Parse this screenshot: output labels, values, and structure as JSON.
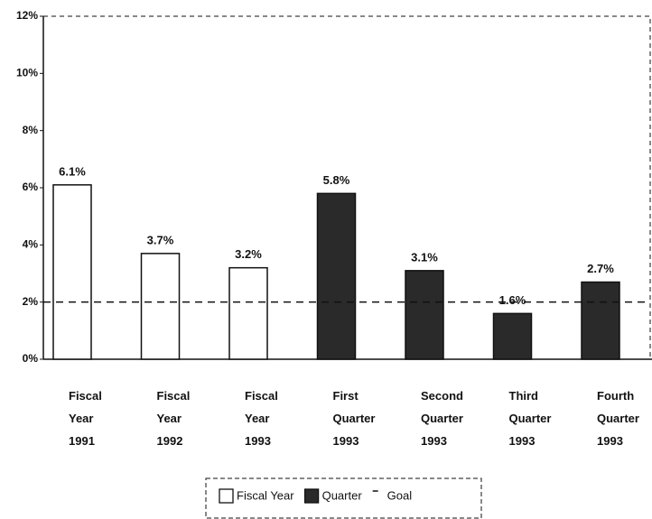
{
  "chart_data": {
    "type": "bar",
    "categories": [
      "Fiscal Year 1991",
      "Fiscal Year 1992",
      "Fiscal Year 1993",
      "First Quarter 1993",
      "Second Quarter 1993",
      "Third Quarter 1993",
      "Fourth Quarter 1993"
    ],
    "series": [
      {
        "name": "Fiscal Year",
        "color": "#ffffff",
        "values": [
          6.1,
          3.7,
          3.2,
          null,
          null,
          null,
          null
        ],
        "value_labels": [
          "6.1%",
          "3.7%",
          "3.2%",
          null,
          null,
          null,
          null
        ]
      },
      {
        "name": "Quarter",
        "color": "#2a2a2a",
        "values": [
          null,
          null,
          null,
          5.8,
          3.1,
          1.6,
          2.7
        ],
        "value_labels": [
          null,
          null,
          null,
          "5.8%",
          "3.1%",
          "1.6%",
          "2.7%"
        ]
      }
    ],
    "goal": {
      "name": "Goal",
      "value": 2
    },
    "ylim": [
      0,
      12
    ],
    "yticks": [
      {
        "value": 0,
        "label": "0%"
      },
      {
        "value": 2,
        "label": "2%"
      },
      {
        "value": 4,
        "label": "4%"
      },
      {
        "value": 6,
        "label": "6%"
      },
      {
        "value": 8,
        "label": "8%"
      },
      {
        "value": 10,
        "label": "10%"
      },
      {
        "value": 12,
        "label": "12%"
      }
    ],
    "legend": "bottom"
  }
}
